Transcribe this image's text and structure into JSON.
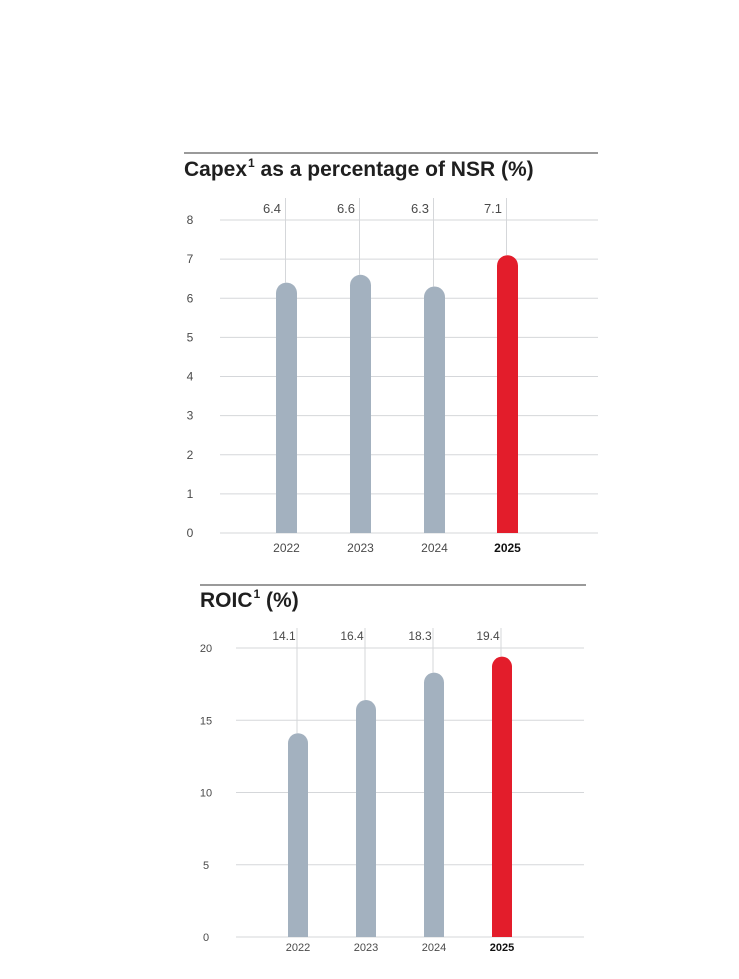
{
  "colors": {
    "bar": "#a3b1bf",
    "highlight": "#e31d2b",
    "grid": "#d5d7da",
    "text": "#4a4a4a"
  },
  "chart_data": [
    {
      "type": "bar",
      "title": "Capex",
      "title_sup": "1",
      "title_rest": " as a percentage of NSR (%)",
      "categories": [
        "2022",
        "2023",
        "2024",
        "2025"
      ],
      "values": [
        6.4,
        6.6,
        6.3,
        7.1
      ],
      "value_labels": [
        "6.4",
        "6.6",
        "6.3",
        "7.1"
      ],
      "highlight_index": 3,
      "ylim": [
        0,
        8
      ],
      "yticks": [
        0,
        1,
        2,
        3,
        4,
        5,
        6,
        7,
        8
      ],
      "grid": true,
      "xlabel": "",
      "ylabel": ""
    },
    {
      "type": "bar",
      "title": "ROIC",
      "title_sup": "1",
      "title_rest": " (%)",
      "categories": [
        "2022",
        "2023",
        "2024",
        "2025"
      ],
      "values": [
        14.1,
        16.4,
        18.3,
        19.4
      ],
      "value_labels": [
        "14.1",
        "16.4",
        "18.3",
        "19.4"
      ],
      "highlight_index": 3,
      "ylim": [
        0,
        20
      ],
      "yticks": [
        0,
        5,
        10,
        15,
        20
      ],
      "grid": true,
      "xlabel": "",
      "ylabel": ""
    }
  ]
}
